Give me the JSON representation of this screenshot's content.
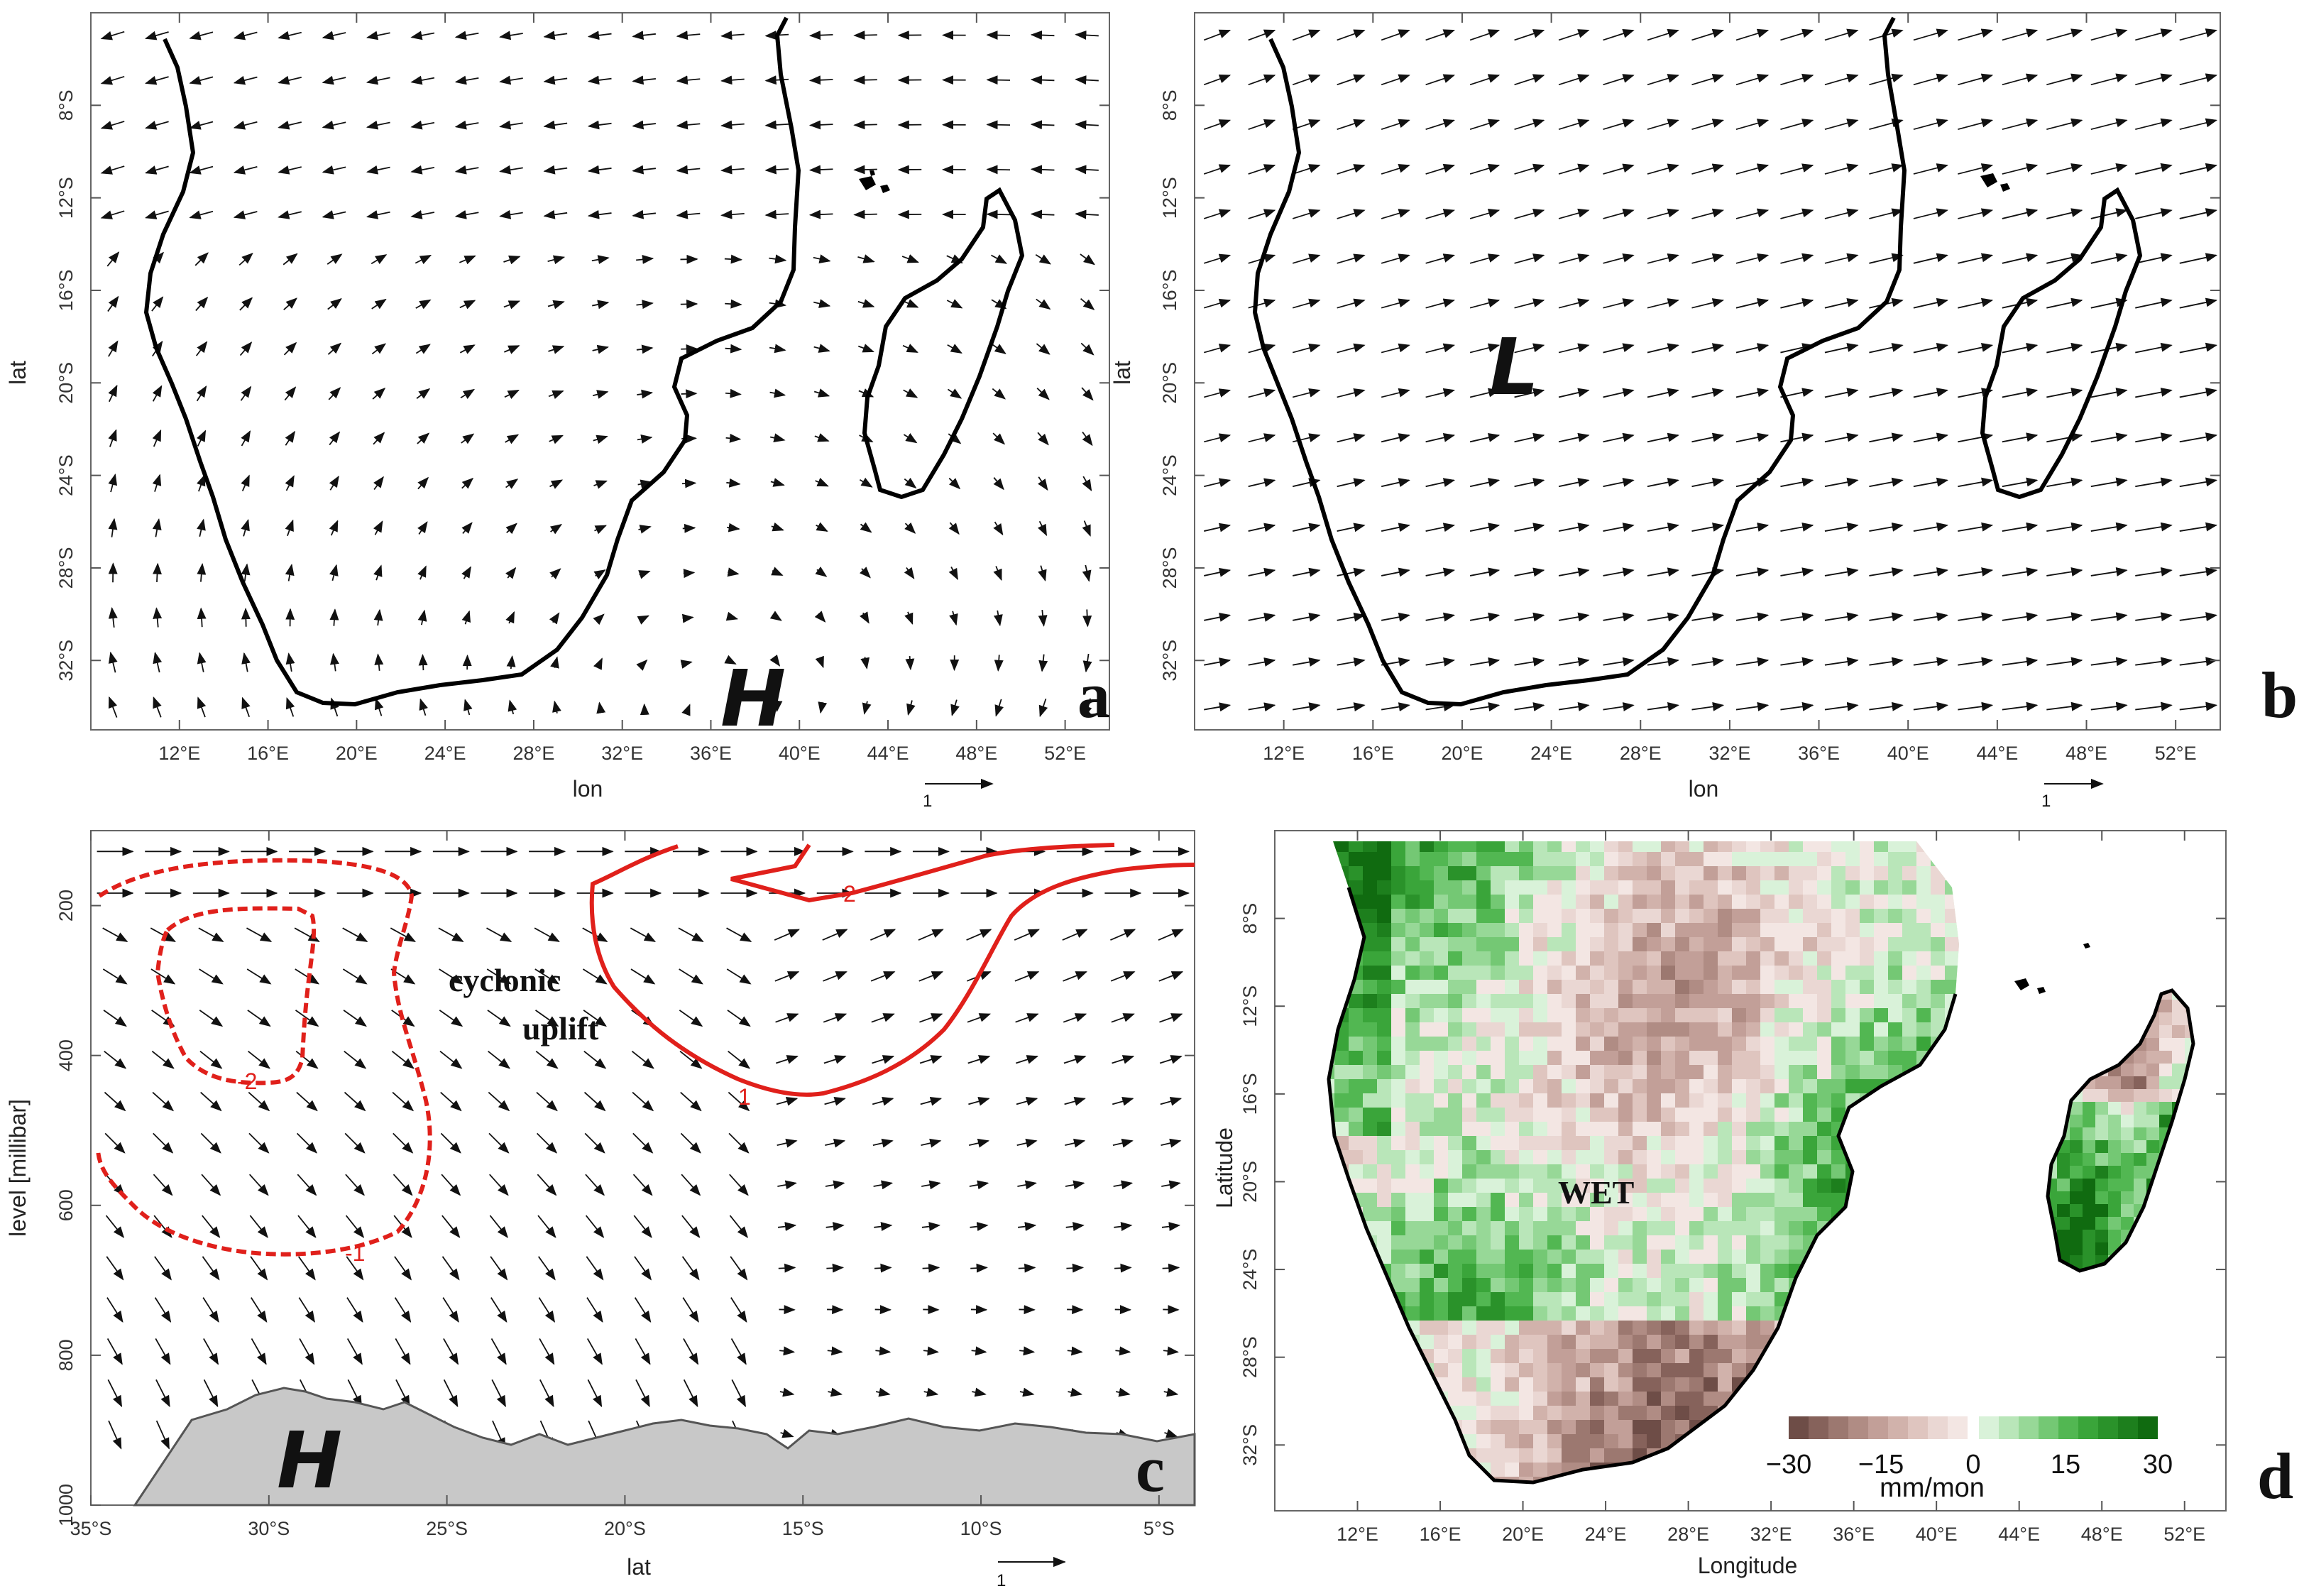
{
  "chart_data": [
    {
      "panel": "a",
      "type": "vector-map",
      "xlabel": "lon",
      "ylabel": "lat",
      "x_ticks": [
        "12°E",
        "16°E",
        "20°E",
        "24°E",
        "28°E",
        "32°E",
        "36°E",
        "40°E",
        "44°E",
        "48°E",
        "52°E"
      ],
      "y_ticks": [
        "8°S",
        "12°S",
        "16°S",
        "20°S",
        "24°S",
        "28°S",
        "32°S"
      ],
      "xlim": [
        8,
        54
      ],
      "ylim": [
        -35,
        -4
      ],
      "annotations": [
        "H"
      ],
      "reference_vector": "1",
      "circulation": "anticyclonic"
    },
    {
      "panel": "b",
      "type": "vector-map",
      "xlabel": "lon",
      "ylabel": "lat",
      "x_ticks": [
        "12°E",
        "16°E",
        "20°E",
        "24°E",
        "28°E",
        "32°E",
        "36°E",
        "40°E",
        "44°E",
        "48°E",
        "52°E"
      ],
      "y_ticks": [
        "8°S",
        "12°S",
        "16°S",
        "20°S",
        "24°S",
        "28°S",
        "32°S"
      ],
      "xlim": [
        8,
        54
      ],
      "ylim": [
        -35,
        -4
      ],
      "annotations": [
        "L"
      ],
      "reference_vector": "1",
      "circulation": "cyclonic"
    },
    {
      "panel": "c",
      "type": "vertical-section",
      "xlabel": "lat",
      "ylabel": "level [millibar]",
      "x_ticks": [
        "35°S",
        "30°S",
        "25°S",
        "20°S",
        "15°S",
        "10°S",
        "5°S"
      ],
      "y_ticks": [
        "200",
        "400",
        "600",
        "800",
        "1000"
      ],
      "xlim": [
        -35,
        -4
      ],
      "ylim": [
        1000,
        100
      ],
      "contour_labels": [
        "-2",
        "-1",
        "2",
        "1"
      ],
      "annotations": [
        "cyclonic",
        "uplift",
        "H"
      ],
      "reference_vector": "1"
    },
    {
      "panel": "d",
      "type": "heatmap",
      "xlabel": "Longitude",
      "ylabel": "Latitude",
      "x_ticks": [
        "12°E",
        "16°E",
        "20°E",
        "24°E",
        "28°E",
        "32°E",
        "36°E",
        "40°E",
        "44°E",
        "48°E",
        "52°E"
      ],
      "y_ticks": [
        "8°S",
        "12°S",
        "16°S",
        "20°S",
        "24°S",
        "28°S",
        "32°S"
      ],
      "xlim": [
        8,
        54
      ],
      "ylim": [
        -35,
        -4
      ],
      "annotations": [
        "WET"
      ],
      "colorbar": {
        "ticks": [
          "−30",
          "−15",
          "0",
          "15",
          "30"
        ],
        "unit": "mm/mon",
        "range": [
          -30,
          30
        ],
        "colors_negative": [
          "#6e4d47",
          "#86625b",
          "#9c7870",
          "#b08c84",
          "#c29f98",
          "#d1b2ab",
          "#dfc5bf",
          "#ead7d3",
          "#f3e6e3"
        ],
        "colors_positive": [
          "#d9f2d9",
          "#b9e6b9",
          "#97d897",
          "#74c874",
          "#52b752",
          "#3aa53a",
          "#2a922a",
          "#1d7f1d",
          "#106b10"
        ]
      }
    }
  ],
  "panel_letters": {
    "a": "a",
    "b": "b",
    "c": "c",
    "d": "d"
  },
  "colors": {
    "contour": "#e0201b",
    "terrain": "#c8c8c8",
    "coast": "#000000"
  }
}
